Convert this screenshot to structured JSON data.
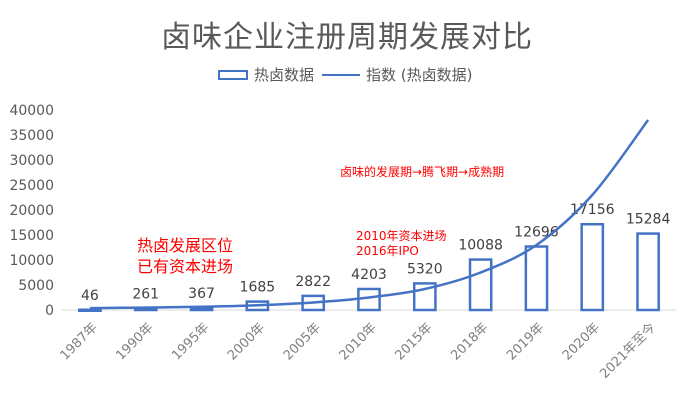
{
  "title": "卤味企业注册周期发展对比",
  "legend": {
    "bar_label": "热卤数据",
    "line_label": "指数 (热卤数据)"
  },
  "annotations": {
    "phase_note": "卤味的发展期→腾飞期→成熟期",
    "hot_brine_line1": "热卤发展区位",
    "hot_brine_line2": "已有资本进场",
    "capital_line1": "2010年资本进场",
    "capital_line2": "2016年IPO"
  },
  "colors": {
    "series": "#4472C4",
    "annotation": "#FF0000",
    "text": "#595959",
    "grid": "#D9D9D9"
  },
  "chart_data": {
    "type": "bar",
    "title": "卤味企业注册周期发展对比",
    "categories": [
      "1987年",
      "1990年",
      "1995年",
      "2000年",
      "2005年",
      "2010年",
      "2015年",
      "2018年",
      "2019年",
      "2020年",
      "2021年至今"
    ],
    "series": [
      {
        "name": "热卤数据",
        "type": "bar",
        "values": [
          46,
          261,
          367,
          1685,
          2822,
          4203,
          5320,
          10088,
          12696,
          17156,
          15284
        ]
      },
      {
        "name": "指数 (热卤数据)",
        "type": "line",
        "trendline": "exponential",
        "values": [
          380,
          480,
          650,
          950,
          1500,
          2500,
          4200,
          7500,
          13000,
          23000,
          38000
        ]
      }
    ],
    "ylim": [
      0,
      40000
    ],
    "yticks": [
      0,
      5000,
      10000,
      15000,
      20000,
      25000,
      30000,
      35000,
      40000
    ],
    "grid": false,
    "legend_position": "top"
  }
}
